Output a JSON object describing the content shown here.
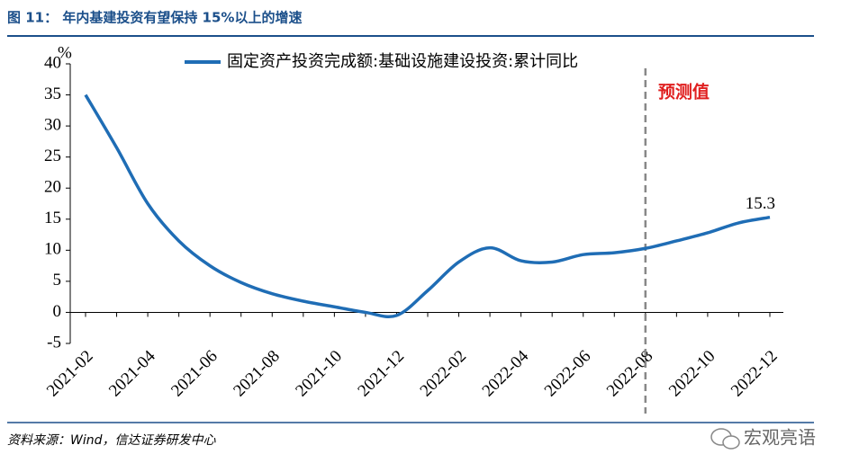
{
  "chart_data": {
    "type": "line",
    "title": "图 11： 年内基建投资有望保持 15%以上的增速",
    "y_unit": "%",
    "categories": [
      "2021-02",
      null,
      "2021-04",
      null,
      "2021-06",
      null,
      "2021-08",
      null,
      "2021-10",
      null,
      "2021-12",
      null,
      "2022-02",
      null,
      "2022-04",
      null,
      "2022-06",
      null,
      "2022-08",
      null,
      "2022-10",
      null,
      "2022-12"
    ],
    "series": [
      {
        "name": "固定资产投资完成额:基础设施建设投资:累计同比",
        "color": "#1f6db5",
        "values": [
          35,
          26.5,
          17.5,
          11.5,
          7.5,
          4.8,
          3,
          1.8,
          0.9,
          0,
          -0.5,
          3.5,
          8.1,
          10.4,
          8.3,
          8.1,
          9.3,
          9.6,
          10.3,
          11.5,
          12.8,
          14.4,
          15.3
        ],
        "value_labels": [
          null,
          null,
          null,
          null,
          null,
          null,
          null,
          null,
          null,
          null,
          null,
          null,
          null,
          null,
          null,
          null,
          null,
          null,
          null,
          null,
          null,
          null,
          "15.3"
        ]
      }
    ],
    "ylim": [
      -5,
      40
    ],
    "yticks": [
      -5,
      0,
      5,
      10,
      15,
      20,
      25,
      30,
      35,
      40
    ],
    "annotations": [
      {
        "text": "预测值",
        "x": "2022-08",
        "color": "#e02020"
      }
    ],
    "source": "资料来源：Wind，信达证券研发中心",
    "watermark": "宏观亮语"
  }
}
